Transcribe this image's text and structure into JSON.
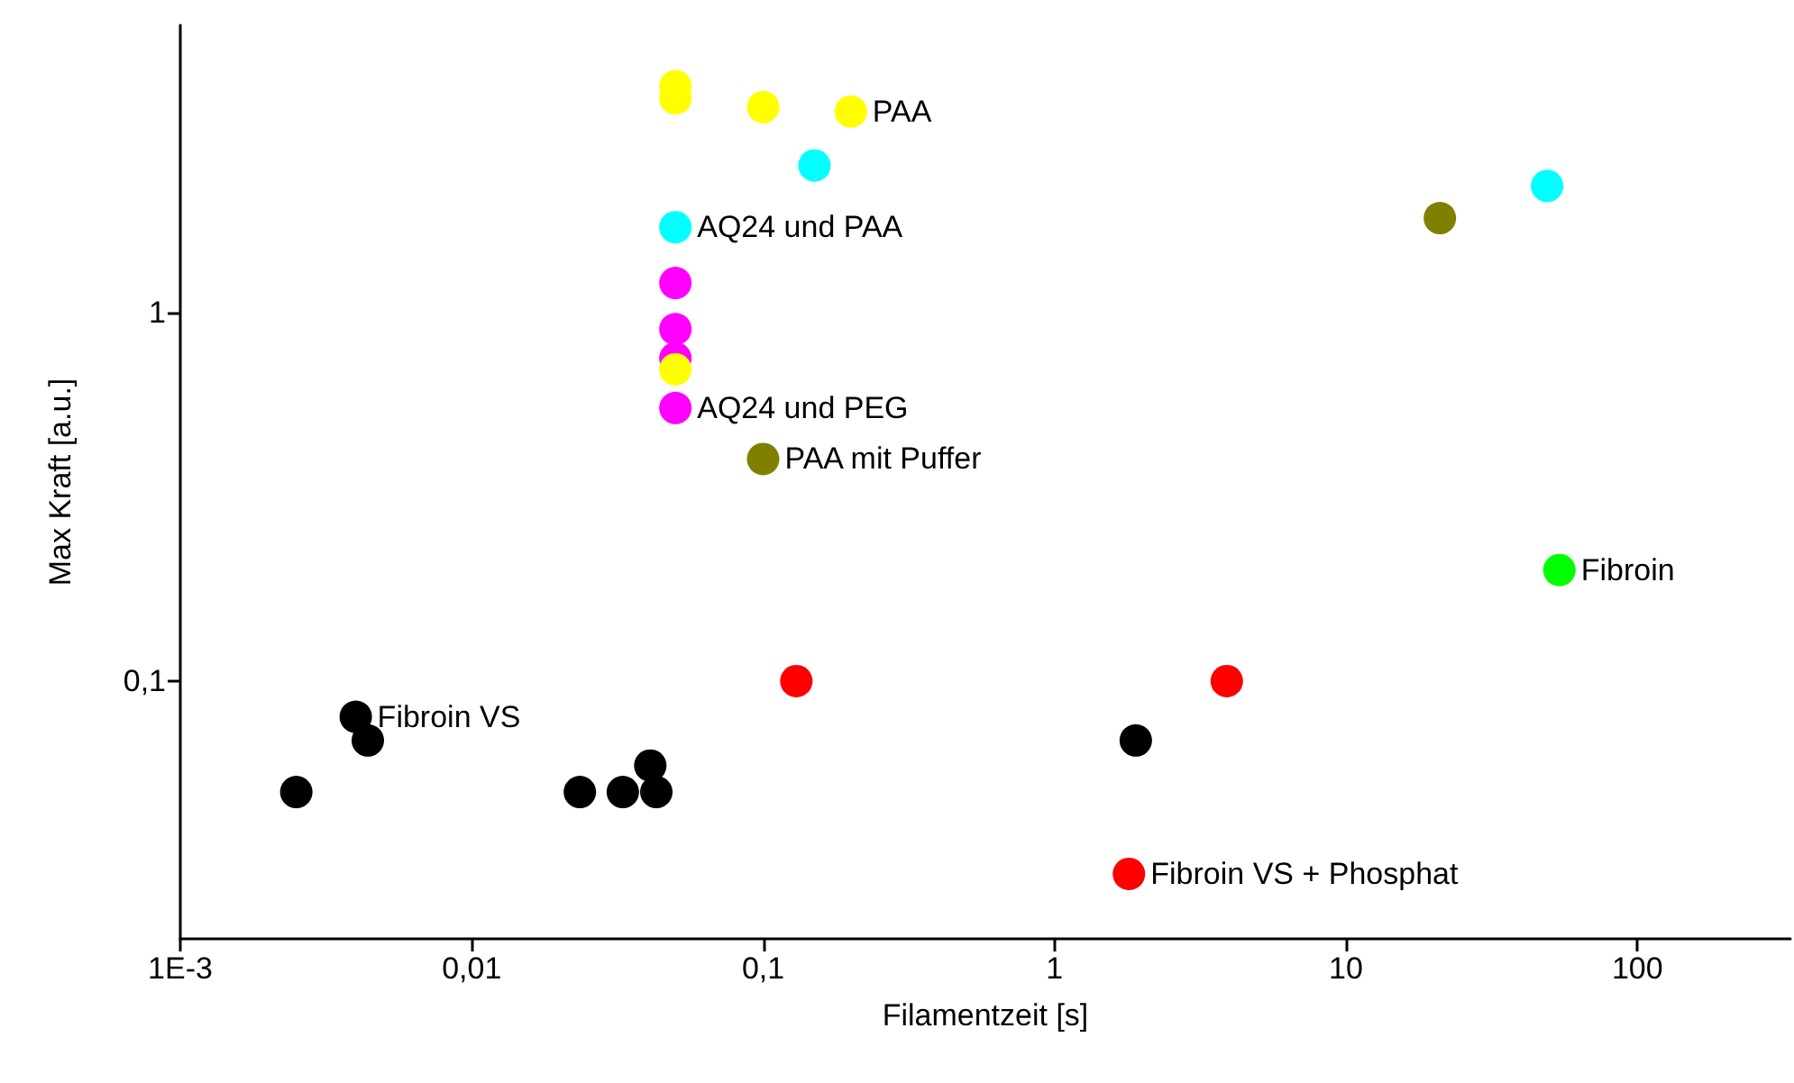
{
  "chart_data": {
    "type": "scatter",
    "xlabel": "Filamentzeit [s]",
    "ylabel": "Max Kraft [a.u.]",
    "log": "xy",
    "grid": false,
    "marker": "circle",
    "xlim": [
      0.001,
      335
    ],
    "ylim": [
      0.02,
      6
    ],
    "xticks": [
      {
        "value": 0.001,
        "label": "1E-3"
      },
      {
        "value": 0.01,
        "label": "0,01"
      },
      {
        "value": 0.1,
        "label": "0,1"
      },
      {
        "value": 1,
        "label": "1"
      },
      {
        "value": 10,
        "label": "10"
      },
      {
        "value": 100,
        "label": "100"
      }
    ],
    "yticks": [
      {
        "value": 0.1,
        "label": "0,1"
      },
      {
        "value": 1,
        "label": "1"
      }
    ],
    "series": [
      {
        "color": "#ffff00",
        "x": [
          0.05,
          0.05,
          0.1,
          0.2,
          0.05
        ],
        "values": [
          4.1,
          3.8,
          3.6,
          3.5,
          0.7
        ]
      },
      {
        "color": "#00ffff",
        "x": [
          0.15,
          0.05,
          49
        ],
        "values": [
          2.5,
          1.7,
          2.2
        ]
      },
      {
        "color": "#ff00ff",
        "x": [
          0.05,
          0.05,
          0.05,
          0.05
        ],
        "values": [
          1.2,
          0.9,
          0.75,
          0.55
        ]
      },
      {
        "color": "#808000",
        "x": [
          21,
          0.1
        ],
        "values": [
          1.8,
          0.4
        ]
      },
      {
        "color": "#00ff00",
        "x": [
          54
        ],
        "values": [
          0.2
        ]
      },
      {
        "color": "#ff0000",
        "x": [
          0.13,
          3.9,
          1.8
        ],
        "values": [
          0.1,
          0.1,
          0.03
        ]
      },
      {
        "color": "#000000",
        "x": [
          0.0025,
          0.004,
          0.0044,
          0.0235,
          0.033,
          0.041,
          0.043,
          1.9
        ],
        "values": [
          0.05,
          0.08,
          0.069,
          0.05,
          0.05,
          0.059,
          0.05,
          0.069
        ]
      }
    ],
    "annotations": [
      {
        "text": "PAA",
        "x": 0.2,
        "y": 3.5
      },
      {
        "text": "AQ24 und PAA",
        "x": 0.05,
        "y": 1.7
      },
      {
        "text": "AQ24 und PEG",
        "x": 0.05,
        "y": 0.55
      },
      {
        "text": "PAA mit Puffer",
        "x": 0.1,
        "y": 0.4
      },
      {
        "text": "Fibroin",
        "x": 54,
        "y": 0.2
      },
      {
        "text": "Fibroin VS",
        "x": 0.004,
        "y": 0.08
      },
      {
        "text": "Fibroin VS + Phosphat",
        "x": 1.8,
        "y": 0.03
      }
    ]
  }
}
